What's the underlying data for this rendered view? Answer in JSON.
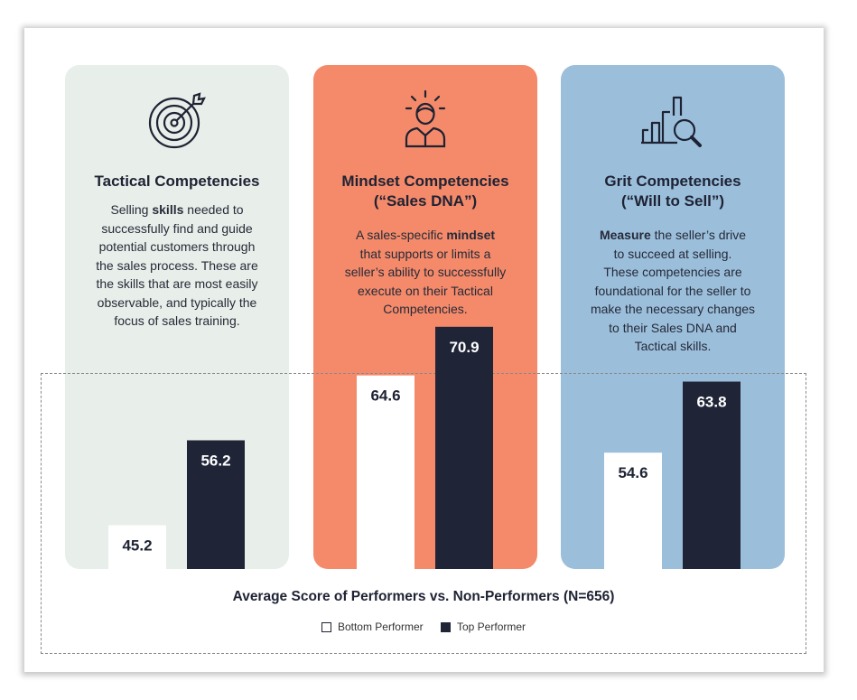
{
  "cards": [
    {
      "title_lines": [
        "Tactical Competencies"
      ],
      "desc_html": "Selling <b>skills</b> needed to<br>successfully find and guide<br>potential customers through<br>the sales process. These are<br>the skills that are most easily<br>observable, and typically the<br>focus of sales training.",
      "icon": "target-icon"
    },
    {
      "title_lines": [
        "Mindset Competencies",
        "(“Sales DNA”)"
      ],
      "desc_html": "A sales-specific <b>mindset</b><br>that supports or limits a<br>seller’s ability to successfully<br>execute on their Tactical<br>Competencies.",
      "icon": "person-idea-icon"
    },
    {
      "title_lines": [
        "Grit Competencies",
        "(“Will to Sell”)"
      ],
      "desc_html": "<b>Measure</b> the seller’s drive<br>to succeed at selling.<br>These competencies are<br>foundational for the seller to<br>make the necessary changes<br>to their Sales DNA and<br>Tactical skills.",
      "icon": "chart-magnifier-icon"
    }
  ],
  "chart_data": {
    "type": "bar",
    "title": "Average Score of Performers vs. Non-Performers (N=656)",
    "categories": [
      "Tactical Competencies",
      "Mindset Competencies",
      "Grit Competencies"
    ],
    "series": [
      {
        "name": "Bottom Performer",
        "values": [
          45.2,
          64.6,
          54.6
        ],
        "color": "#ffffff",
        "text_color": "#1e2233"
      },
      {
        "name": "Top Performer",
        "values": [
          56.2,
          70.9,
          63.8
        ],
        "color": "#1f2437",
        "text_color": "#ffffff"
      }
    ],
    "legend": "bottom-center"
  }
}
